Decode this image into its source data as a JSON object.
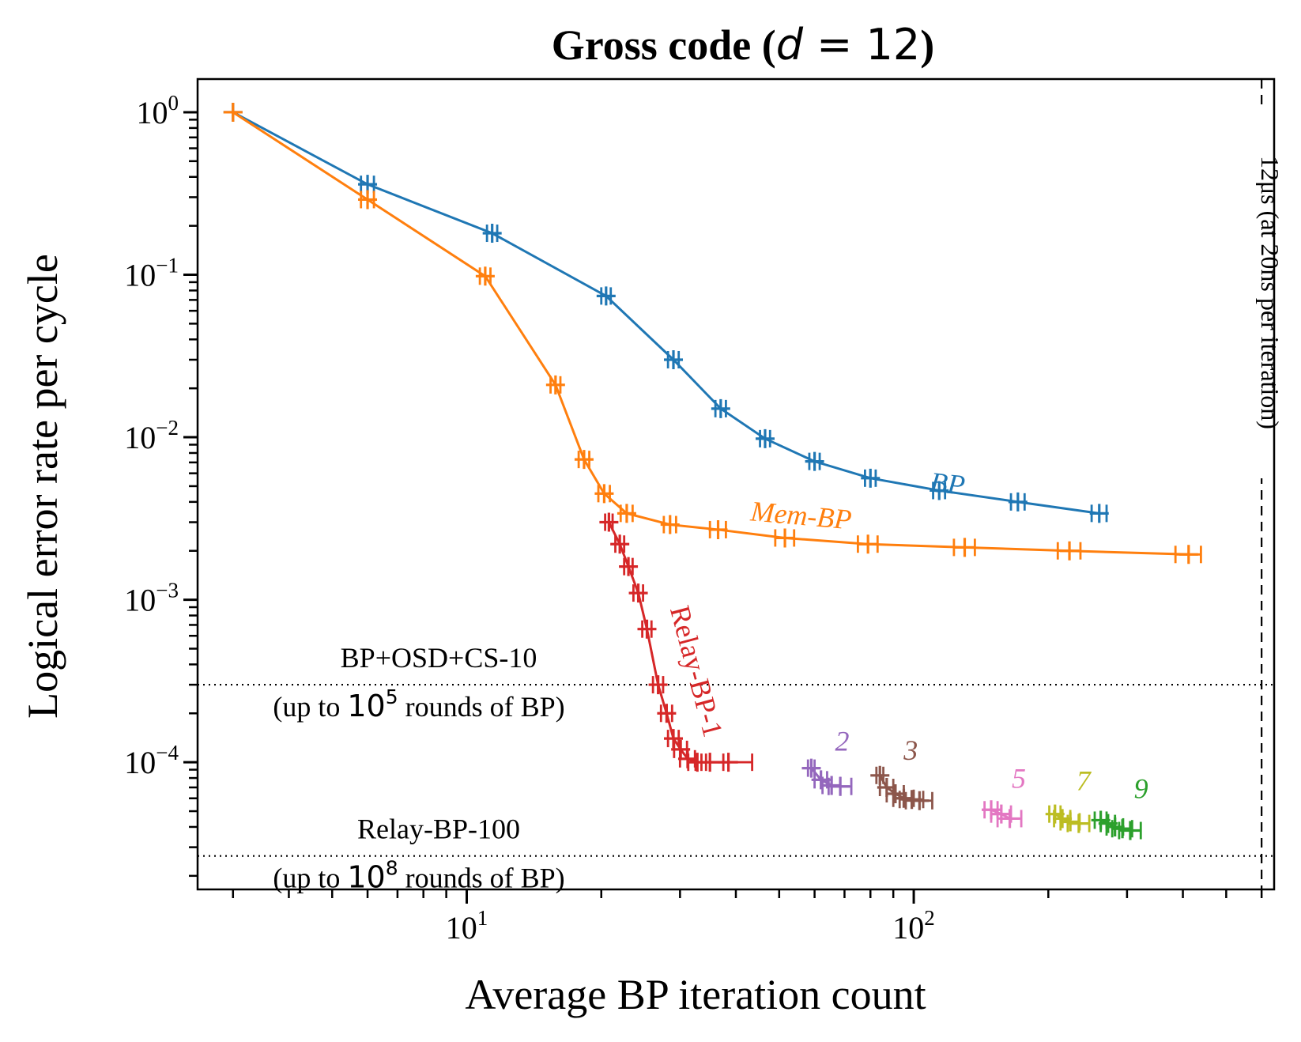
{
  "chart_data": {
    "type": "line",
    "title": "Gross code (d = 12)",
    "xlabel": "Average BP iteration count",
    "ylabel": "Logical error rate per cycle",
    "xscale": "log",
    "yscale": "log",
    "xlim": [
      2.5,
      640
    ],
    "ylim": [
      1.65e-05,
      1.6
    ],
    "xtick_labels": [
      "10^1",
      "10^2"
    ],
    "ytick_labels": [
      "10^0",
      "10^-1",
      "10^-2",
      "10^-3",
      "10^-4"
    ],
    "grid": false,
    "series": [
      {
        "name": "BP",
        "color": "#1f77b4",
        "x": [
          3,
          6,
          11.4,
          20.5,
          29,
          37,
          46.5,
          60,
          80,
          114,
          171,
          260
        ],
        "y": [
          1.0,
          0.36,
          0.18,
          0.074,
          0.03,
          0.015,
          0.0098,
          0.0071,
          0.0056,
          0.0047,
          0.004,
          0.0034
        ],
        "xerr": [
          0,
          0.2,
          0.3,
          0.5,
          0.8,
          1.0,
          1.2,
          1.6,
          2.2,
          3.5,
          6,
          10
        ]
      },
      {
        "name": "Mem-BP",
        "color": "#ff7f0e",
        "x": [
          3,
          6,
          11,
          15.8,
          18.3,
          20.3,
          22.8,
          28.5,
          36.5,
          51.5,
          79,
          130,
          223,
          412
        ],
        "y": [
          1.0,
          0.29,
          0.098,
          0.021,
          0.0073,
          0.0045,
          0.0034,
          0.0029,
          0.0027,
          0.0024,
          0.0022,
          0.0021,
          0.002,
          0.0019
        ],
        "xerr": [
          0,
          0.2,
          0.3,
          0.4,
          0.5,
          0.6,
          0.7,
          0.9,
          1.5,
          2.5,
          4,
          7,
          13,
          27
        ]
      },
      {
        "name": "Relay-BP-1",
        "color": "#d62728",
        "x": [
          20.8,
          22,
          23,
          24.2,
          25.3,
          26.8,
          28,
          29,
          30.1,
          31.2,
          32.8,
          35,
          38.5
        ],
        "y": [
          0.003,
          0.0022,
          0.0016,
          0.0011,
          0.00066,
          0.0003,
          0.0002,
          0.00014,
          0.00012,
          0.000105,
          0.0001,
          0.0001,
          0.0001
        ],
        "xerr": [
          0.4,
          0.5,
          0.5,
          0.6,
          0.6,
          0.7,
          0.8,
          0.8,
          1.0,
          1.2,
          1.5,
          2.5,
          5
        ]
      },
      {
        "name": "2",
        "color": "#9467bd",
        "x": [
          59,
          62,
          65.5,
          68.5
        ],
        "y": [
          9.2e-05,
          7.8e-05,
          7.2e-05,
          7.1e-05
        ],
        "xerr": [
          1,
          2,
          3,
          4
        ]
      },
      {
        "name": "3",
        "color": "#8c564b",
        "x": [
          84,
          87,
          91,
          95,
          99,
          103
        ],
        "y": [
          8.3e-05,
          7e-05,
          6.4e-05,
          6e-05,
          5.9e-05,
          5.8e-05
        ],
        "xerr": [
          1.5,
          3,
          4,
          5,
          6,
          7
        ]
      },
      {
        "name": "5",
        "color": "#e377c2",
        "x": [
          149,
          157,
          164
        ],
        "y": [
          5.1e-05,
          4.8e-05,
          4.5e-05
        ],
        "xerr": [
          5,
          8,
          10
        ]
      },
      {
        "name": "7",
        "color": "#bcbd22",
        "x": [
          207,
          215,
          224,
          234
        ],
        "y": [
          4.8e-05,
          4.5e-05,
          4.3e-05,
          4.2e-05
        ],
        "xerr": [
          6,
          9,
          11,
          13
        ]
      },
      {
        "name": "9",
        "color": "#2ca02c",
        "x": [
          262,
          272,
          282,
          293,
          305
        ],
        "y": [
          4.4e-05,
          4.2e-05,
          4e-05,
          3.9e-05,
          3.8e-05
        ],
        "xerr": [
          8,
          10,
          12,
          15,
          17
        ]
      }
    ],
    "reference_lines": [
      {
        "label_line1": "BP+OSD+CS-10",
        "label_pre": "(up to ",
        "label_pow_base": "10",
        "label_pow_exp": "5",
        "label_post": " rounds of BP)",
        "y": 0.0003
      },
      {
        "label_line1": "Relay-BP-100",
        "label_pre": "(up to ",
        "label_pow_base": "10",
        "label_pow_exp": "8",
        "label_post": " rounds of BP)",
        "y": 2.65e-05
      }
    ],
    "vertical_line": {
      "label": "12μs (at 20ns per iteration)",
      "x": 600
    }
  }
}
